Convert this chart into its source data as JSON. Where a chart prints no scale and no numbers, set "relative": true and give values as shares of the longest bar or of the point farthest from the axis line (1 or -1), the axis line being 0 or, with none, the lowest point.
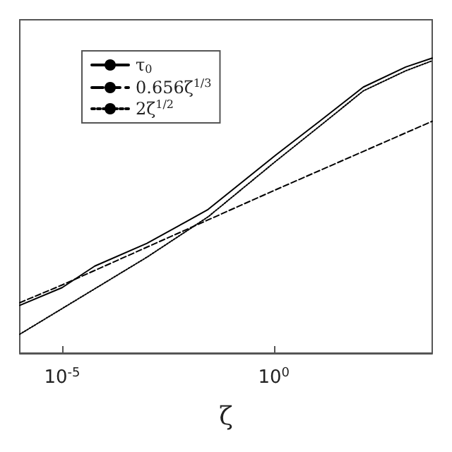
{
  "chart_data": {
    "type": "line",
    "xlabel": "ζ",
    "log": "x",
    "relative": true,
    "marker": "none",
    "legend": "top left",
    "grid": false,
    "xlim": [
      1e-06,
      5500
    ],
    "xticks": [
      {
        "value": 1e-05,
        "label": "10$^{-5}$"
      },
      {
        "value": 1,
        "label": "10$^{0}$"
      }
    ],
    "series": [
      {
        "name": "τ$_{0}$",
        "color": "#000000",
        "line_style": "solid",
        "x": [
          1e-06,
          1e-05,
          5.9e-05,
          0.001,
          0.0081,
          0.028,
          1.1,
          12,
          130,
          1300,
          5500
        ],
        "values": [
          0.162,
          0.222,
          0.295,
          0.372,
          0.444,
          0.487,
          0.671,
          0.786,
          0.902,
          0.97,
          1
        ]
      },
      {
        "name": "0.656ζ$^{1/3}$",
        "color": "#000000",
        "line_style": "dashed",
        "x": [
          1e-06,
          1e-05,
          1,
          5500
        ],
        "values": [
          0.171,
          0.231,
          0.551,
          0.786
        ]
      },
      {
        "name": "2ζ$^{1/2}$",
        "color": "#000000",
        "line_style": "dotted",
        "x": [
          1e-06,
          0.001,
          0.028,
          1.1,
          12,
          130,
          1300,
          5500
        ],
        "values": [
          0.064,
          0.325,
          0.462,
          0.65,
          0.769,
          0.889,
          0.957,
          0.991
        ]
      }
    ]
  }
}
